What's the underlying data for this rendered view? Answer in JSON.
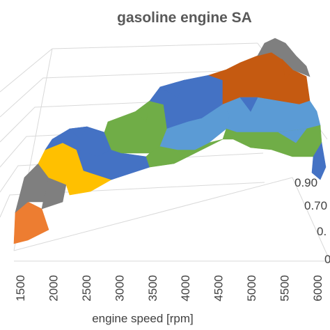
{
  "chart_data": {
    "type": "surface",
    "title": "gasoline engine SA",
    "xlabel": "engine speed [rpm]",
    "ylabel": "",
    "zlabel": "",
    "x_ticks": [
      "1500",
      "2000",
      "2500",
      "3000",
      "3500",
      "4000",
      "4500",
      "5000",
      "5500",
      "6000"
    ],
    "z_ticks_visible": [
      "0.90",
      "0.70",
      "0.",
      "0"
    ],
    "x": [
      1500,
      2000,
      2500,
      3000,
      3500,
      4000,
      4500,
      5000,
      5500,
      6000
    ],
    "band_colors": [
      "#ed7d31",
      "#7f7f7f",
      "#ffc000",
      "#4472c4",
      "#70ad47",
      "#5b9bd5",
      "#c55a11"
    ],
    "z_ridge_estimate": [
      0.3,
      0.55,
      0.7,
      0.8,
      0.88,
      0.95,
      1.0,
      1.05,
      1.1,
      1.2
    ],
    "grid": true
  }
}
